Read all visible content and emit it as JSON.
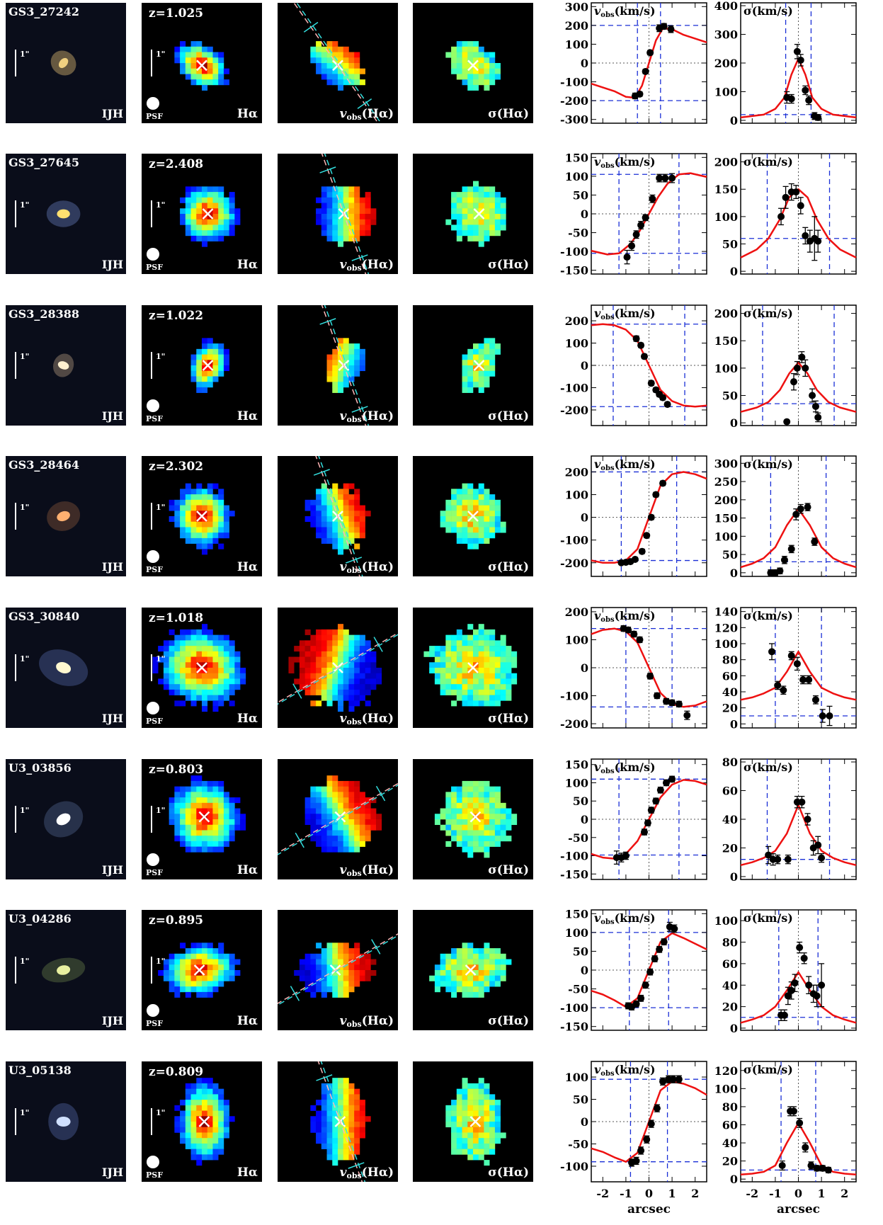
{
  "labels": {
    "filter_label": "IJH",
    "scale_label": "1\"",
    "psf_label": "PSF",
    "halpha_label": "Hα",
    "vobs_map_label": "v",
    "vobs_map_sub": "obs",
    "vobs_map_paren": "(Hα)",
    "sigma_map_label": "σ(Hα)",
    "vel_plot_label": "v",
    "vel_plot_sub": "obs",
    "vel_plot_unit": "(km/s)",
    "sig_plot_label": "σ(km/s)",
    "x_axis_label": "arcsec"
  },
  "x_ticks": [
    -2,
    -1,
    0,
    1,
    2
  ],
  "colors": {
    "model": "#ee1111",
    "guide": "#1a2fd6",
    "pa_line_a": "#ffb6b6",
    "pa_line_b": "#33dddd",
    "panel_bg": "#000000"
  },
  "chart_data": [
    {
      "type": "scatter",
      "panel": "velocity",
      "galaxy": "GS3_27242",
      "redshift": "z=1.025",
      "xlim": [
        -2.5,
        2.5
      ],
      "ylim": [
        -320,
        320
      ],
      "yticks": [
        -300,
        -200,
        -100,
        0,
        100,
        200,
        300
      ],
      "x": [
        -0.6,
        -0.4,
        -0.15,
        0.05,
        0.45,
        0.65,
        0.95
      ],
      "y": [
        -175,
        -165,
        -45,
        55,
        185,
        195,
        180
      ],
      "err": [
        15,
        12,
        12,
        12,
        18,
        15,
        18
      ],
      "vlines": [
        -0.5,
        0.5
      ],
      "hlines": [
        -200,
        200
      ],
      "model_x": [
        -2.5,
        -1.5,
        -1,
        -0.6,
        -0.3,
        0,
        0.3,
        0.6,
        1,
        1.5,
        2.5
      ],
      "model_y": [
        -110,
        -150,
        -180,
        -185,
        -120,
        0,
        120,
        185,
        180,
        150,
        110
      ]
    },
    {
      "type": "scatter",
      "panel": "dispersion",
      "galaxy": "GS3_27242",
      "xlim": [
        -2.5,
        2.5
      ],
      "ylim": [
        -10,
        410
      ],
      "yticks": [
        0,
        100,
        200,
        300,
        400
      ],
      "x": [
        -0.5,
        -0.3,
        -0.05,
        0.1,
        0.3,
        0.45,
        0.7,
        0.85
      ],
      "y": [
        80,
        75,
        240,
        210,
        105,
        70,
        15,
        10
      ],
      "err": [
        20,
        15,
        25,
        20,
        15,
        15,
        12,
        10
      ],
      "vlines": [
        -0.55,
        0.55
      ],
      "hlines": [
        20
      ],
      "model_x": [
        -2.5,
        -1.5,
        -1,
        -0.6,
        -0.3,
        0,
        0.3,
        0.6,
        1,
        1.5,
        2.5
      ],
      "model_y": [
        10,
        20,
        40,
        80,
        160,
        215,
        160,
        80,
        40,
        20,
        10
      ]
    },
    {
      "type": "scatter",
      "panel": "velocity",
      "galaxy": "GS3_27645",
      "redshift": "z=2.408",
      "xlim": [
        -2.5,
        2.5
      ],
      "ylim": [
        -160,
        160
      ],
      "yticks": [
        -150,
        -100,
        -50,
        0,
        50,
        100,
        150
      ],
      "x": [
        -0.95,
        -0.75,
        -0.55,
        -0.35,
        -0.15,
        0.15,
        0.45,
        0.7,
        1.0
      ],
      "y": [
        -115,
        -85,
        -55,
        -30,
        -10,
        40,
        95,
        95,
        95
      ],
      "err": [
        18,
        12,
        10,
        10,
        8,
        10,
        10,
        10,
        12
      ],
      "vlines": [
        -1.3,
        1.3
      ],
      "hlines": [
        -105,
        105
      ],
      "model_x": [
        -2.5,
        -1.8,
        -1.3,
        -0.8,
        -0.4,
        0,
        0.4,
        0.8,
        1.3,
        1.8,
        2.5
      ],
      "model_y": [
        -98,
        -108,
        -105,
        -80,
        -45,
        0,
        45,
        80,
        105,
        108,
        98
      ]
    },
    {
      "type": "scatter",
      "panel": "dispersion",
      "galaxy": "GS3_27645",
      "xlim": [
        -2.5,
        2.5
      ],
      "ylim": [
        -5,
        215
      ],
      "yticks": [
        0,
        50,
        100,
        150,
        200
      ],
      "x": [
        -0.75,
        -0.55,
        -0.3,
        -0.1,
        0.1,
        0.3,
        0.5,
        0.7,
        0.85
      ],
      "y": [
        100,
        135,
        145,
        145,
        120,
        65,
        55,
        60,
        55
      ],
      "err": [
        15,
        20,
        15,
        12,
        15,
        15,
        20,
        40,
        20
      ],
      "vlines": [
        -1.35,
        1.35
      ],
      "hlines": [
        60
      ],
      "model_x": [
        -2.5,
        -1.8,
        -1.3,
        -0.8,
        -0.4,
        0,
        0.4,
        0.8,
        1.3,
        1.8,
        2.5
      ],
      "model_y": [
        25,
        40,
        60,
        95,
        135,
        150,
        135,
        95,
        60,
        40,
        25
      ]
    },
    {
      "type": "scatter",
      "panel": "velocity",
      "galaxy": "GS3_28388",
      "redshift": "z=1.022",
      "xlim": [
        -2.5,
        2.5
      ],
      "ylim": [
        -270,
        270
      ],
      "yticks": [
        -200,
        -100,
        0,
        100,
        200
      ],
      "x": [
        -0.55,
        -0.35,
        -0.2,
        0.1,
        0.3,
        0.45,
        0.6,
        0.8
      ],
      "y": [
        120,
        90,
        40,
        -80,
        -110,
        -130,
        -145,
        -175
      ],
      "err": [
        12,
        10,
        10,
        10,
        10,
        10,
        10,
        10
      ],
      "vlines": [
        -1.55,
        1.55
      ],
      "hlines": [
        -185,
        185
      ],
      "model_x": [
        -2.5,
        -2,
        -1.5,
        -1,
        -0.5,
        0,
        0.5,
        1,
        1.5,
        2,
        2.5
      ],
      "model_y": [
        180,
        185,
        180,
        160,
        110,
        0,
        -110,
        -160,
        -180,
        -185,
        -180
      ]
    },
    {
      "type": "scatter",
      "panel": "dispersion",
      "galaxy": "GS3_28388",
      "xlim": [
        -2.5,
        2.5
      ],
      "ylim": [
        -5,
        215
      ],
      "yticks": [
        0,
        50,
        100,
        150,
        200
      ],
      "x": [
        -0.5,
        -0.2,
        -0.05,
        0.15,
        0.3,
        0.6,
        0.75,
        0.85
      ],
      "y": [
        2,
        75,
        100,
        120,
        100,
        50,
        30,
        10
      ],
      "err": [
        3,
        15,
        12,
        10,
        15,
        12,
        10,
        8
      ],
      "vlines": [
        -1.55,
        1.55
      ],
      "hlines": [
        35
      ],
      "model_x": [
        -2.5,
        -1.8,
        -1.3,
        -0.8,
        -0.4,
        0,
        0.4,
        0.8,
        1.3,
        1.8,
        2.5
      ],
      "model_y": [
        20,
        28,
        38,
        60,
        90,
        110,
        90,
        60,
        38,
        28,
        20
      ]
    },
    {
      "type": "scatter",
      "panel": "velocity",
      "galaxy": "GS3_28464",
      "redshift": "z=2.302",
      "xlim": [
        -2.5,
        2.5
      ],
      "ylim": [
        -260,
        270
      ],
      "yticks": [
        -200,
        -100,
        0,
        100,
        200
      ],
      "x": [
        -1.2,
        -1.0,
        -0.8,
        -0.6,
        -0.3,
        -0.1,
        0.1,
        0.3,
        0.6
      ],
      "y": [
        -200,
        -198,
        -195,
        -185,
        -150,
        -80,
        0,
        100,
        150
      ],
      "err": [
        8,
        8,
        8,
        8,
        10,
        10,
        10,
        10,
        10
      ],
      "vlines": [
        -1.2,
        1.2
      ],
      "hlines": [
        -190,
        200
      ],
      "model_x": [
        -2.5,
        -2,
        -1.5,
        -1,
        -0.5,
        0,
        0.5,
        1,
        1.5,
        2,
        2.5
      ],
      "model_y": [
        -190,
        -200,
        -200,
        -190,
        -140,
        0,
        140,
        190,
        200,
        190,
        170
      ]
    },
    {
      "type": "scatter",
      "panel": "dispersion",
      "galaxy": "GS3_28464",
      "xlim": [
        -2.5,
        2.5
      ],
      "ylim": [
        -10,
        320
      ],
      "yticks": [
        0,
        50,
        100,
        150,
        200,
        250,
        300
      ],
      "x": [
        -1.2,
        -1.0,
        -0.8,
        -0.6,
        -0.3,
        -0.1,
        0.1,
        0.4,
        0.7
      ],
      "y": [
        0,
        0,
        5,
        35,
        65,
        160,
        175,
        180,
        85
      ],
      "err": [
        8,
        8,
        8,
        10,
        10,
        15,
        12,
        10,
        10
      ],
      "vlines": [
        -1.2,
        1.2
      ],
      "hlines": [
        30
      ],
      "model_x": [
        -2.5,
        -2,
        -1.5,
        -1,
        -0.5,
        0,
        0.5,
        1,
        1.5,
        2,
        2.5
      ],
      "model_y": [
        15,
        25,
        40,
        70,
        130,
        175,
        130,
        70,
        40,
        25,
        15
      ]
    },
    {
      "type": "scatter",
      "panel": "velocity",
      "galaxy": "GS3_30840",
      "redshift": "z=1.018",
      "xlim": [
        -2.5,
        2.5
      ],
      "ylim": [
        -215,
        215
      ],
      "yticks": [
        -200,
        -100,
        0,
        100,
        200
      ],
      "x": [
        -1.1,
        -0.9,
        -0.65,
        -0.4,
        0.05,
        0.35,
        0.75,
        1.0,
        1.3,
        1.65
      ],
      "y": [
        140,
        135,
        120,
        100,
        -30,
        -100,
        -120,
        -125,
        -130,
        -170
      ],
      "err": [
        10,
        10,
        10,
        10,
        10,
        10,
        10,
        10,
        10,
        15
      ],
      "vlines": [
        -1.0,
        1.0
      ],
      "hlines": [
        -140,
        140
      ],
      "model_x": [
        -2.5,
        -2,
        -1.5,
        -1,
        -0.5,
        0,
        0.5,
        1,
        1.5,
        2,
        2.5
      ],
      "model_y": [
        120,
        135,
        140,
        130,
        90,
        0,
        -90,
        -130,
        -140,
        -135,
        -120
      ]
    },
    {
      "type": "scatter",
      "panel": "dispersion",
      "galaxy": "GS3_30840",
      "xlim": [
        -2.5,
        2.5
      ],
      "ylim": [
        -5,
        145
      ],
      "yticks": [
        0,
        20,
        40,
        60,
        80,
        100,
        120,
        140
      ],
      "x": [
        -1.15,
        -0.9,
        -0.65,
        -0.3,
        -0.05,
        0.2,
        0.45,
        0.75,
        1.05,
        1.35
      ],
      "y": [
        90,
        48,
        42,
        85,
        75,
        55,
        55,
        30,
        10,
        10
      ],
      "err": [
        10,
        5,
        5,
        5,
        8,
        5,
        5,
        5,
        8,
        12
      ],
      "vlines": [
        -1.0,
        1.0
      ],
      "hlines": [
        10
      ],
      "model_x": [
        -2.5,
        -2,
        -1.5,
        -1,
        -0.5,
        0,
        0.5,
        1,
        1.5,
        2,
        2.5
      ],
      "model_y": [
        30,
        33,
        38,
        45,
        65,
        90,
        65,
        45,
        38,
        33,
        30
      ]
    },
    {
      "type": "scatter",
      "panel": "velocity",
      "galaxy": "U3_03856",
      "redshift": "z=0.803",
      "xlim": [
        -2.5,
        2.5
      ],
      "ylim": [
        -165,
        165
      ],
      "yticks": [
        -150,
        -100,
        -50,
        0,
        50,
        100,
        150
      ],
      "x": [
        -1.4,
        -1.2,
        -1.0,
        -0.2,
        -0.05,
        0.1,
        0.3,
        0.5,
        0.75,
        1.0
      ],
      "y": [
        -105,
        -105,
        -100,
        -35,
        -10,
        25,
        50,
        80,
        100,
        110
      ],
      "err": [
        18,
        12,
        10,
        8,
        8,
        8,
        8,
        8,
        8,
        8
      ],
      "vlines": [
        -1.3,
        1.3
      ],
      "hlines": [
        -98,
        110
      ],
      "model_x": [
        -2.5,
        -2,
        -1.5,
        -1,
        -0.5,
        0,
        0.5,
        1,
        1.5,
        2,
        2.5
      ],
      "model_y": [
        -95,
        -105,
        -108,
        -95,
        -60,
        0,
        60,
        95,
        108,
        105,
        95
      ]
    },
    {
      "type": "scatter",
      "panel": "dispersion",
      "galaxy": "U3_03856",
      "xlim": [
        -2.5,
        2.5
      ],
      "ylim": [
        -2,
        82
      ],
      "yticks": [
        0,
        20,
        40,
        60,
        80
      ],
      "x": [
        -1.3,
        -1.1,
        -0.9,
        -0.45,
        -0.05,
        0.15,
        0.4,
        0.65,
        0.85,
        1.0
      ],
      "y": [
        15,
        12,
        12,
        12,
        52,
        52,
        40,
        20,
        22,
        13
      ],
      "err": [
        6,
        4,
        3,
        3,
        4,
        4,
        4,
        5,
        6,
        3
      ],
      "vlines": [
        -1.35,
        1.35
      ],
      "hlines": [
        12
      ],
      "model_x": [
        -2.5,
        -2,
        -1.5,
        -1,
        -0.5,
        0,
        0.5,
        1,
        1.5,
        2,
        2.5
      ],
      "model_y": [
        8,
        10,
        13,
        18,
        30,
        50,
        30,
        18,
        13,
        10,
        8
      ]
    },
    {
      "type": "scatter",
      "panel": "velocity",
      "galaxy": "U3_04286",
      "redshift": "z=0.895",
      "xlim": [
        -2.5,
        2.5
      ],
      "ylim": [
        -160,
        160
      ],
      "yticks": [
        -150,
        -100,
        -50,
        0,
        50,
        100,
        150
      ],
      "x": [
        -0.9,
        -0.75,
        -0.55,
        -0.35,
        -0.15,
        0.05,
        0.25,
        0.45,
        0.65,
        0.9,
        1.1
      ],
      "y": [
        -95,
        -98,
        -90,
        -75,
        -40,
        -5,
        30,
        55,
        75,
        115,
        110
      ],
      "err": [
        8,
        8,
        8,
        8,
        8,
        8,
        8,
        8,
        8,
        12,
        10
      ],
      "vlines": [
        -0.85,
        0.85
      ],
      "hlines": [
        -100,
        100
      ],
      "model_x": [
        -2.5,
        -2,
        -1.5,
        -1,
        -0.5,
        0,
        0.5,
        1,
        1.5,
        2,
        2.5
      ],
      "model_y": [
        -55,
        -65,
        -80,
        -98,
        -75,
        0,
        75,
        98,
        85,
        70,
        55
      ]
    },
    {
      "type": "scatter",
      "panel": "dispersion",
      "galaxy": "U3_04286",
      "xlim": [
        -2.5,
        2.5
      ],
      "ylim": [
        -2,
        110
      ],
      "yticks": [
        0,
        20,
        40,
        60,
        80,
        100
      ],
      "x": [
        -0.75,
        -0.6,
        -0.45,
        -0.3,
        -0.15,
        0.05,
        0.25,
        0.45,
        0.65,
        0.8,
        1.0
      ],
      "y": [
        12,
        12,
        30,
        35,
        42,
        75,
        65,
        40,
        32,
        30,
        40
      ],
      "err": [
        5,
        5,
        8,
        8,
        8,
        5,
        5,
        8,
        8,
        10,
        20
      ],
      "vlines": [
        -0.85,
        0.85
      ],
      "hlines": [
        10
      ],
      "model_x": [
        -2.5,
        -2,
        -1.5,
        -1,
        -0.5,
        0,
        0.5,
        1,
        1.5,
        2,
        2.5
      ],
      "model_y": [
        5,
        8,
        12,
        20,
        35,
        52,
        35,
        20,
        12,
        8,
        5
      ]
    },
    {
      "type": "scatter",
      "panel": "velocity",
      "galaxy": "U3_05138",
      "redshift": "z=0.809",
      "xlim": [
        -2.5,
        2.5
      ],
      "ylim": [
        -135,
        135
      ],
      "yticks": [
        -100,
        -50,
        0,
        50,
        100
      ],
      "x": [
        -0.75,
        -0.55,
        -0.35,
        -0.1,
        0.1,
        0.35,
        0.6,
        0.85,
        1.05,
        1.3
      ],
      "y": [
        -92,
        -88,
        -65,
        -40,
        -5,
        30,
        90,
        95,
        95,
        95
      ],
      "err": [
        8,
        8,
        8,
        8,
        8,
        8,
        8,
        8,
        8,
        8
      ],
      "vlines": [
        -0.8,
        0.8
      ],
      "hlines": [
        -90,
        95
      ],
      "model_x": [
        -2.5,
        -2,
        -1.5,
        -1,
        -0.5,
        0,
        0.5,
        1,
        1.5,
        2,
        2.5
      ],
      "model_y": [
        -60,
        -68,
        -80,
        -90,
        -70,
        0,
        70,
        90,
        85,
        75,
        60
      ]
    },
    {
      "type": "scatter",
      "panel": "dispersion",
      "galaxy": "U3_05138",
      "xlim": [
        -2.5,
        2.5
      ],
      "ylim": [
        -3,
        130
      ],
      "yticks": [
        0,
        20,
        40,
        60,
        80,
        100,
        120
      ],
      "x": [
        -0.7,
        -0.35,
        -0.2,
        0.05,
        0.3,
        0.55,
        0.8,
        1.05,
        1.3
      ],
      "y": [
        15,
        75,
        75,
        62,
        35,
        15,
        12,
        12,
        10
      ],
      "err": [
        5,
        5,
        5,
        5,
        5,
        4,
        3,
        3,
        3
      ],
      "vlines": [
        -0.75,
        0.75
      ],
      "hlines": [
        10
      ],
      "model_x": [
        -2.5,
        -2,
        -1.5,
        -1,
        -0.5,
        0,
        0.5,
        1,
        1.5,
        2,
        2.5
      ],
      "model_y": [
        5,
        6,
        8,
        15,
        40,
        62,
        40,
        15,
        8,
        6,
        5
      ]
    }
  ]
}
